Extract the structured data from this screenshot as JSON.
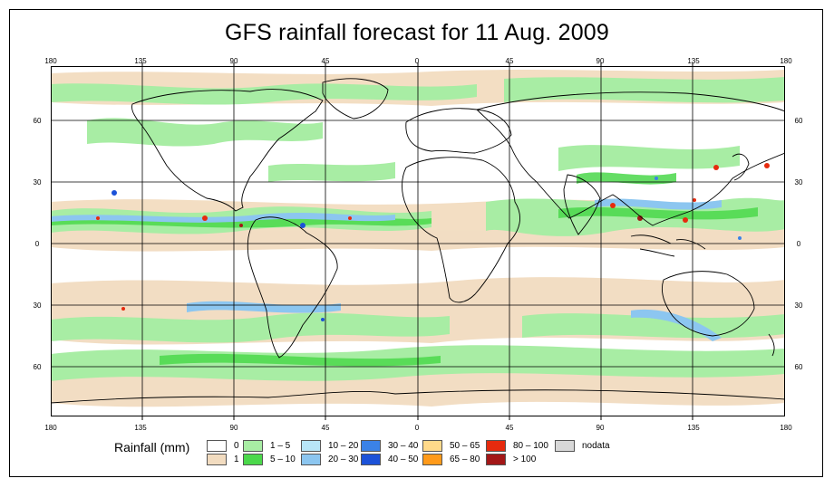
{
  "title": "GFS rainfall forecast for 11 Aug. 2009",
  "axes": {
    "lon_labels": [
      "180",
      "135",
      "90",
      "45",
      "0",
      "45",
      "90",
      "135",
      "180"
    ],
    "lat_labels": [
      "60",
      "30",
      "0",
      "30",
      "60"
    ]
  },
  "legend": {
    "title": "Rainfall (mm)",
    "items": [
      {
        "label": "0",
        "color": "#ffffff"
      },
      {
        "label": "1",
        "color": "#f2dcc0"
      },
      {
        "label": "1 – 5",
        "color": "#a8eda4"
      },
      {
        "label": "5 – 10",
        "color": "#4bd84b"
      },
      {
        "label": "10 – 20",
        "color": "#b8e6f7"
      },
      {
        "label": "20 – 30",
        "color": "#8cc6f0"
      },
      {
        "label": "30 – 40",
        "color": "#3b82e6"
      },
      {
        "label": "40 – 50",
        "color": "#1c52d8"
      },
      {
        "label": "50 – 65",
        "color": "#ffd98a"
      },
      {
        "label": "65 – 80",
        "color": "#ff9a1a"
      },
      {
        "label": "80 – 100",
        "color": "#e62a0e"
      },
      {
        "label": "> 100",
        "color": "#a31717"
      },
      {
        "label": "nodata",
        "color": "#d8d8d8"
      }
    ]
  }
}
